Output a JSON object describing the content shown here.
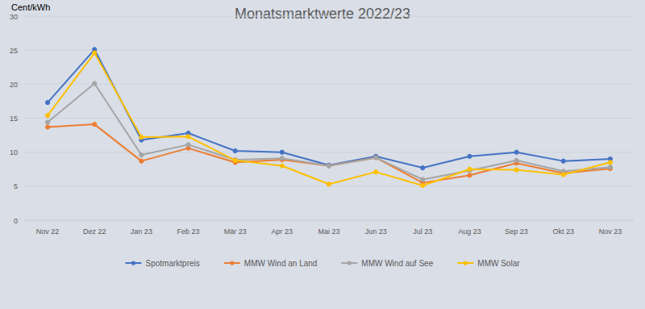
{
  "chart_data": {
    "type": "line",
    "title": "Monatsmarktwerte 2022/23",
    "y_label": "Cent/kWh",
    "categories": [
      "Nov 22",
      "Dez 22",
      "Jan 23",
      "Feb 23",
      "Mär 23",
      "Apr 23",
      "Mai 23",
      "Jun 23",
      "Jul 23",
      "Aug 23",
      "Sep 23",
      "Okt 23",
      "Nov 23"
    ],
    "series": [
      {
        "name": "Spotmarktpreis",
        "color": "#4472c4",
        "marker": "circle",
        "values": [
          17.3,
          25.1,
          11.8,
          12.8,
          10.2,
          10.0,
          8.1,
          9.4,
          7.7,
          9.4,
          10.0,
          8.7,
          9.0
        ]
      },
      {
        "name": "MMW Wind an Land",
        "color": "#ed7d31",
        "marker": "circle",
        "values": [
          13.7,
          14.1,
          8.7,
          10.6,
          8.5,
          8.9,
          8.0,
          9.2,
          5.5,
          6.6,
          8.4,
          6.9,
          7.6
        ]
      },
      {
        "name": "MMW Wind auf See",
        "color": "#a5a5a5",
        "marker": "circle",
        "values": [
          14.4,
          20.1,
          9.6,
          11.1,
          8.9,
          9.1,
          8.0,
          9.2,
          6.0,
          7.3,
          8.8,
          7.2,
          7.8
        ]
      },
      {
        "name": "MMW Solar",
        "color": "#ffc000",
        "marker": "circle",
        "values": [
          15.4,
          24.6,
          12.2,
          12.3,
          8.8,
          8.0,
          5.3,
          7.1,
          5.1,
          7.5,
          7.4,
          6.7,
          8.5
        ]
      }
    ],
    "ylim": [
      0,
      30
    ],
    "yticks": [
      0,
      5,
      10,
      15,
      20,
      25,
      30
    ],
    "grid": true,
    "legend": "bottom"
  }
}
